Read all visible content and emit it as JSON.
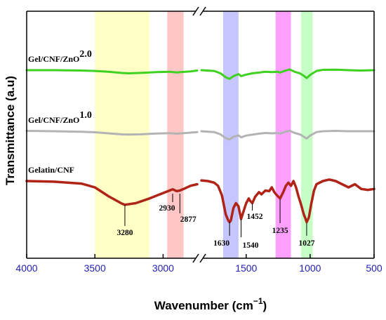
{
  "chart_data": {
    "type": "line",
    "xlabel": "Wavenumber (cm",
    "xlabel_sup": "−1",
    "xlabel_close": ")",
    "ylabel": "Transmittance (a.u)",
    "xlim": [
      4000,
      500
    ],
    "axis_break_between": [
      2750,
      1850
    ],
    "ticks": [
      {
        "value": 4000,
        "label": "4000"
      },
      {
        "value": 3500,
        "label": "3500"
      },
      {
        "value": 3000,
        "label": "3000"
      },
      {
        "value": 1500,
        "label": "1500"
      },
      {
        "value": 1000,
        "label": "1000"
      },
      {
        "value": 500,
        "label": "500"
      }
    ],
    "bands": [
      {
        "from": 3500,
        "to": 3100,
        "color": "#ffffb3"
      },
      {
        "from": 2970,
        "to": 2850,
        "color": "#ffb3b3"
      },
      {
        "from": 1680,
        "to": 1560,
        "color": "#b3b3ff"
      },
      {
        "from": 1270,
        "to": 1150,
        "color": "#ff7fff"
      },
      {
        "from": 1070,
        "to": 980,
        "color": "#b3ffb3"
      }
    ],
    "series": [
      {
        "name": "Gel/CNF/ZnO",
        "name_sup": "2.0",
        "color": "#3fd11f",
        "offset": 0.93,
        "scale": 0.5,
        "points": [
          [
            4000,
            0
          ],
          [
            3800,
            0
          ],
          [
            3600,
            -0.02
          ],
          [
            3500,
            -0.05
          ],
          [
            3400,
            -0.1
          ],
          [
            3300,
            -0.18
          ],
          [
            3250,
            -0.2
          ],
          [
            3150,
            -0.17
          ],
          [
            3050,
            -0.12
          ],
          [
            2950,
            -0.1
          ],
          [
            2900,
            -0.14
          ],
          [
            2800,
            -0.08
          ],
          [
            2750,
            -0.02
          ],
          [
            1850,
            0.0
          ],
          [
            1750,
            -0.05
          ],
          [
            1700,
            -0.2
          ],
          [
            1660,
            -0.45
          ],
          [
            1630,
            -0.55
          ],
          [
            1600,
            -0.38
          ],
          [
            1560,
            -0.25
          ],
          [
            1540,
            -0.38
          ],
          [
            1500,
            -0.28
          ],
          [
            1452,
            -0.2
          ],
          [
            1400,
            -0.15
          ],
          [
            1350,
            -0.1
          ],
          [
            1300,
            -0.12
          ],
          [
            1250,
            -0.1
          ],
          [
            1235,
            -0.15
          ],
          [
            1200,
            -0.05
          ],
          [
            1160,
            0.05
          ],
          [
            1120,
            -0.1
          ],
          [
            1080,
            -0.2
          ],
          [
            1050,
            -0.35
          ],
          [
            1027,
            -0.5
          ],
          [
            1000,
            -0.3
          ],
          [
            950,
            -0.05
          ],
          [
            900,
            0.02
          ],
          [
            800,
            0.03
          ],
          [
            700,
            0.0
          ],
          [
            600,
            -0.02
          ],
          [
            500,
            0.0
          ]
        ]
      },
      {
        "name": "Gel/CNF/ZnO",
        "name_sup": "1.0",
        "color": "#b3b3b3",
        "offset": 0.52,
        "scale": 0.55,
        "points": [
          [
            4000,
            0.02
          ],
          [
            3800,
            0
          ],
          [
            3600,
            -0.03
          ],
          [
            3500,
            -0.06
          ],
          [
            3400,
            -0.12
          ],
          [
            3300,
            -0.18
          ],
          [
            3250,
            -0.19
          ],
          [
            3150,
            -0.17
          ],
          [
            3050,
            -0.13
          ],
          [
            2950,
            -0.11
          ],
          [
            2900,
            -0.14
          ],
          [
            2800,
            -0.08
          ],
          [
            2750,
            -0.05
          ],
          [
            1850,
            0.0
          ],
          [
            1750,
            -0.05
          ],
          [
            1700,
            -0.18
          ],
          [
            1660,
            -0.4
          ],
          [
            1630,
            -0.48
          ],
          [
            1600,
            -0.32
          ],
          [
            1560,
            -0.24
          ],
          [
            1540,
            -0.35
          ],
          [
            1500,
            -0.25
          ],
          [
            1452,
            -0.2
          ],
          [
            1400,
            -0.14
          ],
          [
            1350,
            -0.1
          ],
          [
            1300,
            -0.12
          ],
          [
            1250,
            -0.1
          ],
          [
            1235,
            -0.14
          ],
          [
            1200,
            -0.05
          ],
          [
            1160,
            0.03
          ],
          [
            1120,
            -0.1
          ],
          [
            1080,
            -0.18
          ],
          [
            1050,
            -0.32
          ],
          [
            1027,
            -0.42
          ],
          [
            1000,
            -0.25
          ],
          [
            950,
            -0.05
          ],
          [
            900,
            0.0
          ],
          [
            800,
            0.02
          ],
          [
            700,
            0.0
          ],
          [
            600,
            0.0
          ],
          [
            500,
            0.0
          ]
        ]
      },
      {
        "name": "Gelatin/CNF",
        "name_sup": "",
        "color": "#b02418",
        "offset": 0.0,
        "scale": 1.0,
        "points": [
          [
            4000,
            0
          ],
          [
            3800,
            -0.02
          ],
          [
            3600,
            -0.08
          ],
          [
            3500,
            -0.2
          ],
          [
            3400,
            -0.48
          ],
          [
            3300,
            -0.72
          ],
          [
            3280,
            -0.75
          ],
          [
            3200,
            -0.7
          ],
          [
            3100,
            -0.55
          ],
          [
            3000,
            -0.38
          ],
          [
            2930,
            -0.26
          ],
          [
            2900,
            -0.32
          ],
          [
            2877,
            -0.3
          ],
          [
            2850,
            -0.25
          ],
          [
            2800,
            -0.15
          ],
          [
            2750,
            -0.1
          ],
          [
            1850,
            0.02
          ],
          [
            1800,
            0.0
          ],
          [
            1750,
            -0.05
          ],
          [
            1720,
            -0.15
          ],
          [
            1690,
            -0.45
          ],
          [
            1660,
            -1.05
          ],
          [
            1640,
            -1.25
          ],
          [
            1630,
            -1.3
          ],
          [
            1620,
            -1.25
          ],
          [
            1600,
            -0.85
          ],
          [
            1580,
            -0.7
          ],
          [
            1560,
            -0.8
          ],
          [
            1540,
            -1.2
          ],
          [
            1520,
            -0.95
          ],
          [
            1500,
            -0.7
          ],
          [
            1480,
            -0.55
          ],
          [
            1470,
            -0.62
          ],
          [
            1452,
            -0.7
          ],
          [
            1430,
            -0.5
          ],
          [
            1400,
            -0.35
          ],
          [
            1380,
            -0.42
          ],
          [
            1350,
            -0.3
          ],
          [
            1320,
            -0.32
          ],
          [
            1300,
            -0.2
          ],
          [
            1280,
            -0.35
          ],
          [
            1260,
            -0.45
          ],
          [
            1235,
            -0.55
          ],
          [
            1210,
            -0.35
          ],
          [
            1190,
            -0.15
          ],
          [
            1170,
            -0.05
          ],
          [
            1150,
            -0.15
          ],
          [
            1130,
            0.0
          ],
          [
            1110,
            -0.2
          ],
          [
            1090,
            -0.5
          ],
          [
            1070,
            -0.75
          ],
          [
            1050,
            -1.05
          ],
          [
            1040,
            -1.15
          ],
          [
            1027,
            -1.3
          ],
          [
            1010,
            -1.15
          ],
          [
            990,
            -0.7
          ],
          [
            970,
            -0.3
          ],
          [
            950,
            -0.1
          ],
          [
            900,
            0.0
          ],
          [
            850,
            0.05
          ],
          [
            800,
            0.0
          ],
          [
            750,
            -0.1
          ],
          [
            700,
            -0.2
          ],
          [
            650,
            -0.1
          ],
          [
            600,
            -0.25
          ],
          [
            550,
            -0.28
          ],
          [
            500,
            -0.25
          ]
        ]
      }
    ],
    "annotations": [
      {
        "value": 3280,
        "label": "3280"
      },
      {
        "value": 2930,
        "label": "2930"
      },
      {
        "value": 2877,
        "label": "2877"
      },
      {
        "value": 1630,
        "label": "1630"
      },
      {
        "value": 1540,
        "label": "1540"
      },
      {
        "value": 1452,
        "label": "1452"
      },
      {
        "value": 1235,
        "label": "1235"
      },
      {
        "value": 1027,
        "label": "1027"
      }
    ]
  }
}
